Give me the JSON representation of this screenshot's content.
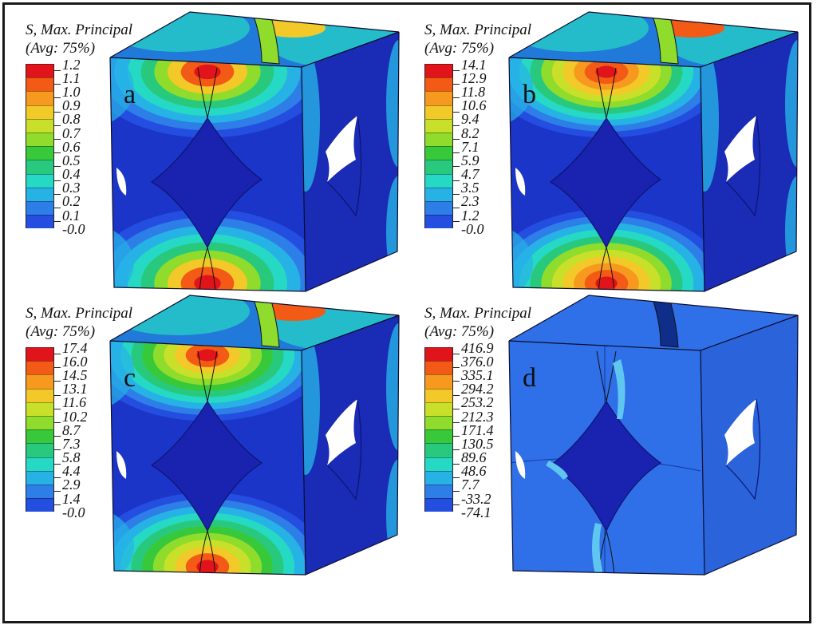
{
  "panels": [
    {
      "id": "a",
      "letter": "a",
      "legend_title": "S, Max. Principal",
      "legend_subtitle": "(Avg: 75%)",
      "values": [
        "1.2",
        "1.1",
        "1.0",
        "0.9",
        "0.8",
        "0.7",
        "0.6",
        "0.5",
        "0.4",
        "0.3",
        "0.2",
        "0.1",
        "-0.0"
      ],
      "stress_level": "low"
    },
    {
      "id": "b",
      "letter": "b",
      "legend_title": "S, Max. Principal",
      "legend_subtitle": "(Avg: 75%)",
      "values": [
        "14.1",
        "12.9",
        "11.8",
        "10.6",
        "9.4",
        "8.2",
        "7.1",
        "5.9",
        "4.7",
        "3.5",
        "2.3",
        "1.2",
        "-0.0"
      ],
      "stress_level": "mid"
    },
    {
      "id": "c",
      "letter": "c",
      "legend_title": "S, Max. Principal",
      "legend_subtitle": "(Avg: 75%)",
      "values": [
        "17.4",
        "16.0",
        "14.5",
        "13.1",
        "11.6",
        "10.2",
        "8.7",
        "7.3",
        "5.8",
        "4.4",
        "2.9",
        "1.4",
        "-0.0"
      ],
      "stress_level": "high"
    },
    {
      "id": "d",
      "letter": "d",
      "legend_title": "S, Max. Principal",
      "legend_subtitle": "(Avg: 75%)",
      "values": [
        "416.9",
        "376.0",
        "335.1",
        "294.2",
        "253.2",
        "212.3",
        "171.4",
        "130.5",
        "89.6",
        "48.6",
        "7.7",
        "-33.2",
        "-74.1"
      ],
      "stress_level": "fractured"
    }
  ],
  "colormap": [
    "#e0141a",
    "#f25a15",
    "#f7991f",
    "#f2c928",
    "#c9e02a",
    "#8fdc2c",
    "#37c93a",
    "#29c97d",
    "#26d9c4",
    "#27b2e6",
    "#2e7ee8",
    "#244ee0",
    "#1d23c8"
  ],
  "colors": {
    "background": "#ffffff",
    "frame": "#1a1a1a",
    "cube_blue": "#1c35c9",
    "fractured_blue": "#2f6fe8"
  }
}
